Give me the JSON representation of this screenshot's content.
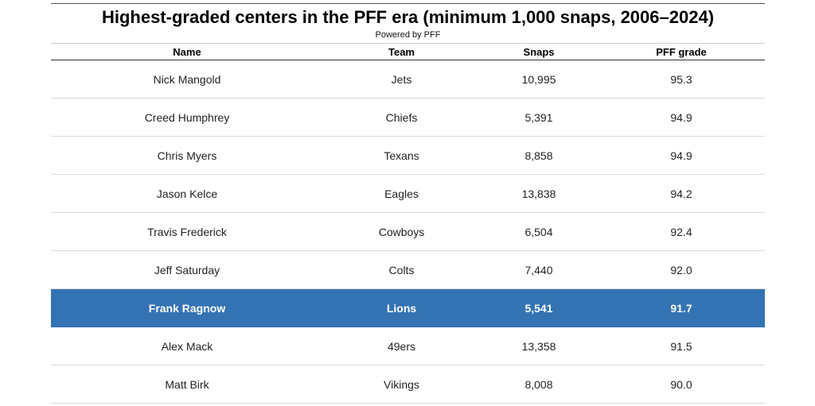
{
  "chart_data": {
    "type": "table",
    "title": "Highest-graded centers in the PFF era (minimum 1,000 snaps, 2006–2024)",
    "subtitle": "Powered by PFF",
    "columns": [
      "Name",
      "Team",
      "Snaps",
      "PFF grade"
    ],
    "rows": [
      {
        "name": "Nick Mangold",
        "team": "Jets",
        "snaps": "10,995",
        "grade": "95.3",
        "highlight": false
      },
      {
        "name": "Creed Humphrey",
        "team": "Chiefs",
        "snaps": "5,391",
        "grade": "94.9",
        "highlight": false
      },
      {
        "name": "Chris Myers",
        "team": "Texans",
        "snaps": "8,858",
        "grade": "94.9",
        "highlight": false
      },
      {
        "name": "Jason Kelce",
        "team": "Eagles",
        "snaps": "13,838",
        "grade": "94.2",
        "highlight": false
      },
      {
        "name": "Travis Frederick",
        "team": "Cowboys",
        "snaps": "6,504",
        "grade": "92.4",
        "highlight": false
      },
      {
        "name": "Jeff Saturday",
        "team": "Colts",
        "snaps": "7,440",
        "grade": "92.0",
        "highlight": false
      },
      {
        "name": "Frank Ragnow",
        "team": "Lions",
        "snaps": "5,541",
        "grade": "91.7",
        "highlight": true
      },
      {
        "name": "Alex Mack",
        "team": "49ers",
        "snaps": "13,358",
        "grade": "91.5",
        "highlight": false
      },
      {
        "name": "Matt Birk",
        "team": "Vikings",
        "snaps": "8,008",
        "grade": "90.0",
        "highlight": false
      }
    ]
  },
  "colors": {
    "highlight_row": "#3473b3",
    "highlight_text": "#ffffff"
  }
}
